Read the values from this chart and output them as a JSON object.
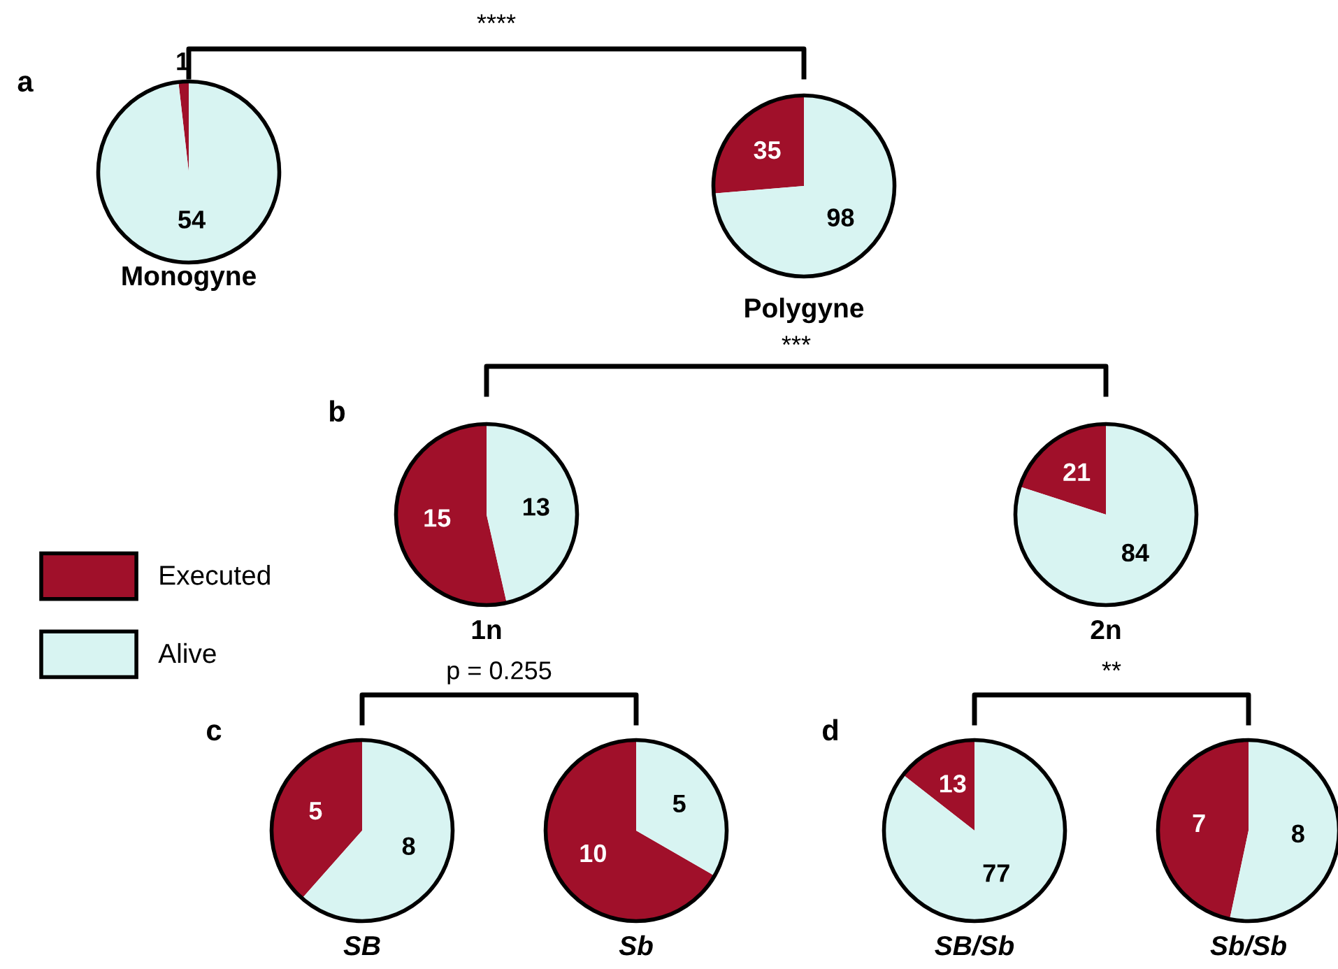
{
  "chart_data": [
    {
      "type": "pie",
      "title": "Monogyne",
      "categories": [
        "Executed",
        "Alive"
      ],
      "values": [
        1,
        54
      ],
      "colors": [
        "#a0102a",
        "#d8f4f2"
      ],
      "data_labels": true,
      "legend": "left",
      "annotations": [
        "a",
        "****"
      ]
    },
    {
      "type": "pie",
      "title": "Polygyne",
      "categories": [
        null,
        null
      ],
      "values": [
        35,
        98
      ],
      "colors": [
        "#a0102a",
        "#d8f4f2"
      ],
      "data_labels": true
    },
    {
      "type": "pie",
      "title": "1n",
      "categories": [
        null,
        null
      ],
      "values": [
        15,
        13
      ],
      "colors": [
        "#a0102a",
        "#d8f4f2"
      ],
      "data_labels": true,
      "annotations": [
        "b",
        "***"
      ]
    },
    {
      "type": "pie",
      "title": "2n",
      "categories": [
        null,
        null
      ],
      "values": [
        21,
        84
      ],
      "colors": [
        "#a0102a",
        "#d8f4f2"
      ],
      "data_labels": true
    },
    {
      "type": "pie",
      "title": "SB",
      "categories": [
        null,
        null
      ],
      "values": [
        5,
        8
      ],
      "colors": [
        "#a0102a",
        "#d8f4f2"
      ],
      "data_labels": true,
      "annotations": [
        "c",
        "p = 0.255"
      ]
    },
    {
      "type": "pie",
      "title": "Sb",
      "categories": [
        null,
        null
      ],
      "values": [
        10,
        5
      ],
      "colors": [
        "#a0102a",
        "#d8f4f2"
      ],
      "data_labels": true
    },
    {
      "type": "pie",
      "title": "SB/Sb",
      "categories": [
        null,
        null
      ],
      "values": [
        13,
        77
      ],
      "colors": [
        "#a0102a",
        "#d8f4f2"
      ],
      "data_labels": true,
      "annotations": [
        "d",
        "**"
      ]
    },
    {
      "type": "pie",
      "title": "Sb/Sb",
      "categories": [
        null,
        null
      ],
      "values": [
        7,
        8
      ],
      "colors": [
        "#a0102a",
        "#d8f4f2"
      ],
      "data_labels": true
    }
  ]
}
